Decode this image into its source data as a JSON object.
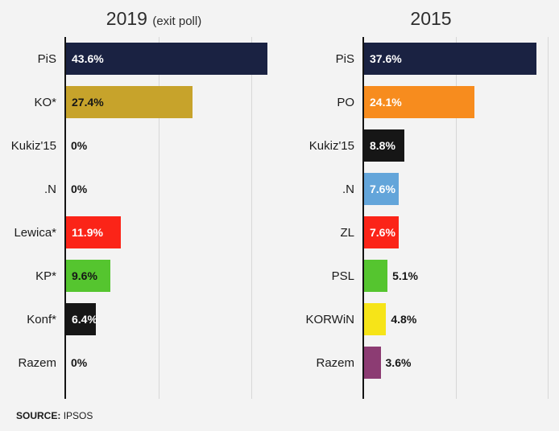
{
  "source": {
    "label": "SOURCE:",
    "value": "IPSOS"
  },
  "chart_data": [
    {
      "type": "bar",
      "title": "2019",
      "subtitle": "(exit poll)",
      "xlabel": "",
      "ylabel": "",
      "axis_max": 47,
      "gridlines": [
        20,
        40
      ],
      "rows": [
        {
          "name": "PiS",
          "value": 43.6,
          "label": "43.6%",
          "color": "#1a2242",
          "inside": true,
          "label_color": "#ffffff"
        },
        {
          "name": "KO*",
          "value": 27.4,
          "label": "27.4%",
          "color": "#c7a32b",
          "inside": true,
          "label_color": "#161616"
        },
        {
          "name": "Kukiz'15",
          "value": 0,
          "label": "0%",
          "color": "transparent",
          "inside": false,
          "label_color": "#161616"
        },
        {
          "name": ".N",
          "value": 0,
          "label": "0%",
          "color": "transparent",
          "inside": false,
          "label_color": "#161616"
        },
        {
          "name": "Lewica*",
          "value": 11.9,
          "label": "11.9%",
          "color": "#fb2418",
          "inside": true,
          "label_color": "#ffffff"
        },
        {
          "name": "KP*",
          "value": 9.6,
          "label": "9.6%",
          "color": "#55c52f",
          "inside": true,
          "label_color": "#161616"
        },
        {
          "name": "Konf*",
          "value": 6.4,
          "label": "6.4%",
          "color": "#161616",
          "inside": true,
          "label_color": "#ffffff"
        },
        {
          "name": "Razem",
          "value": 0,
          "label": "0%",
          "color": "transparent",
          "inside": false,
          "label_color": "#161616"
        }
      ]
    },
    {
      "type": "bar",
      "title": "2015",
      "subtitle": "",
      "xlabel": "",
      "ylabel": "",
      "axis_max": 40,
      "gridlines": [
        20,
        40
      ],
      "rows": [
        {
          "name": "PiS",
          "value": 37.6,
          "label": "37.6%",
          "color": "#1a2242",
          "inside": true,
          "label_color": "#ffffff"
        },
        {
          "name": "PO",
          "value": 24.1,
          "label": "24.1%",
          "color": "#f78c1e",
          "inside": true,
          "label_color": "#ffffff"
        },
        {
          "name": "Kukiz'15",
          "value": 8.8,
          "label": "8.8%",
          "color": "#161616",
          "inside": true,
          "label_color": "#ffffff"
        },
        {
          "name": ".N",
          "value": 7.6,
          "label": "7.6%",
          "color": "#63a5da",
          "inside": true,
          "label_color": "#ffffff"
        },
        {
          "name": "ZL",
          "value": 7.6,
          "label": "7.6%",
          "color": "#fb2418",
          "inside": true,
          "label_color": "#ffffff"
        },
        {
          "name": "PSL",
          "value": 5.1,
          "label": "5.1%",
          "color": "#55c52f",
          "inside": false,
          "label_color": "#161616"
        },
        {
          "name": "KORWiN",
          "value": 4.8,
          "label": "4.8%",
          "color": "#f6e418",
          "inside": false,
          "label_color": "#161616"
        },
        {
          "name": "Razem",
          "value": 3.6,
          "label": "3.6%",
          "color": "#8c3c73",
          "inside": false,
          "label_color": "#161616"
        }
      ]
    }
  ]
}
